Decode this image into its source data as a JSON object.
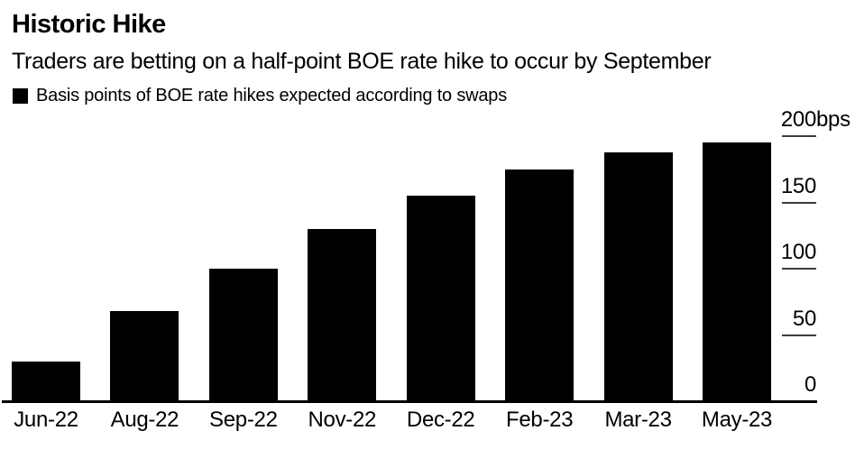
{
  "header": {
    "title": "Historic Hike",
    "subtitle": "Traders are betting on a half-point BOE rate hike to occur by September",
    "legend_label": "Basis points of BOE rate hikes expected according to swaps"
  },
  "colors": {
    "bar": "#000000",
    "axis_line": "#000000",
    "tick_line": "#3d3d3d",
    "text": "#000000",
    "background": "#ffffff"
  },
  "chart_data": {
    "type": "bar",
    "title": "Historic Hike",
    "subtitle": "Traders are betting on a half-point BOE rate hike to occur by September",
    "legend": [
      "Basis points of BOE rate hikes expected according to swaps"
    ],
    "legend_position": "top-left",
    "categories": [
      "Jun-22",
      "Aug-22",
      "Sep-22",
      "Nov-22",
      "Dec-22",
      "Feb-23",
      "Mar-23",
      "May-23"
    ],
    "values": [
      30,
      68,
      100,
      130,
      155,
      175,
      188,
      195
    ],
    "unit": "bps",
    "xlabel": "",
    "ylabel": "",
    "ylim": [
      0,
      200
    ],
    "yticks": [
      0,
      50,
      100,
      150,
      200
    ],
    "ytick_labels": [
      "0",
      "50",
      "100",
      "150",
      "200bps"
    ],
    "ytick_side": "right",
    "grid": "short-tick-marks-right",
    "bar_color": "#000000"
  }
}
